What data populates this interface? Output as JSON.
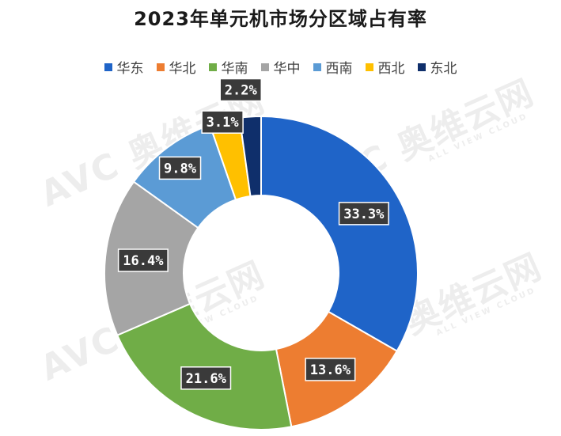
{
  "chart_data": {
    "type": "pie",
    "title": "2023年单元机市场分区域占有率",
    "legend_position": "top",
    "categories": [
      "华东",
      "华北",
      "华南",
      "华中",
      "西南",
      "西北",
      "东北"
    ],
    "values": [
      33.3,
      13.6,
      21.6,
      16.4,
      9.8,
      3.1,
      2.2
    ],
    "labels": [
      "33.3%",
      "13.6%",
      "21.6%",
      "16.4%",
      "9.8%",
      "3.1%",
      "2.2%"
    ],
    "colors": [
      "#1f64c8",
      "#ed7d31",
      "#70ad47",
      "#a5a5a5",
      "#5b9bd5",
      "#ffc000",
      "#0f2f6b"
    ]
  },
  "watermarks": [
    {
      "main": "AVC 奥维云网",
      "sub": "ALL VIEW CLOUD"
    },
    {
      "main": "AVC 奥维云网",
      "sub": "ALL VIEW CLOUD"
    },
    {
      "main": "AVC 奥维云网",
      "sub": "ALL VIEW CLOUD"
    },
    {
      "main": "AVC 奥维云网",
      "sub": "ALL VIEW CLOUD"
    }
  ]
}
